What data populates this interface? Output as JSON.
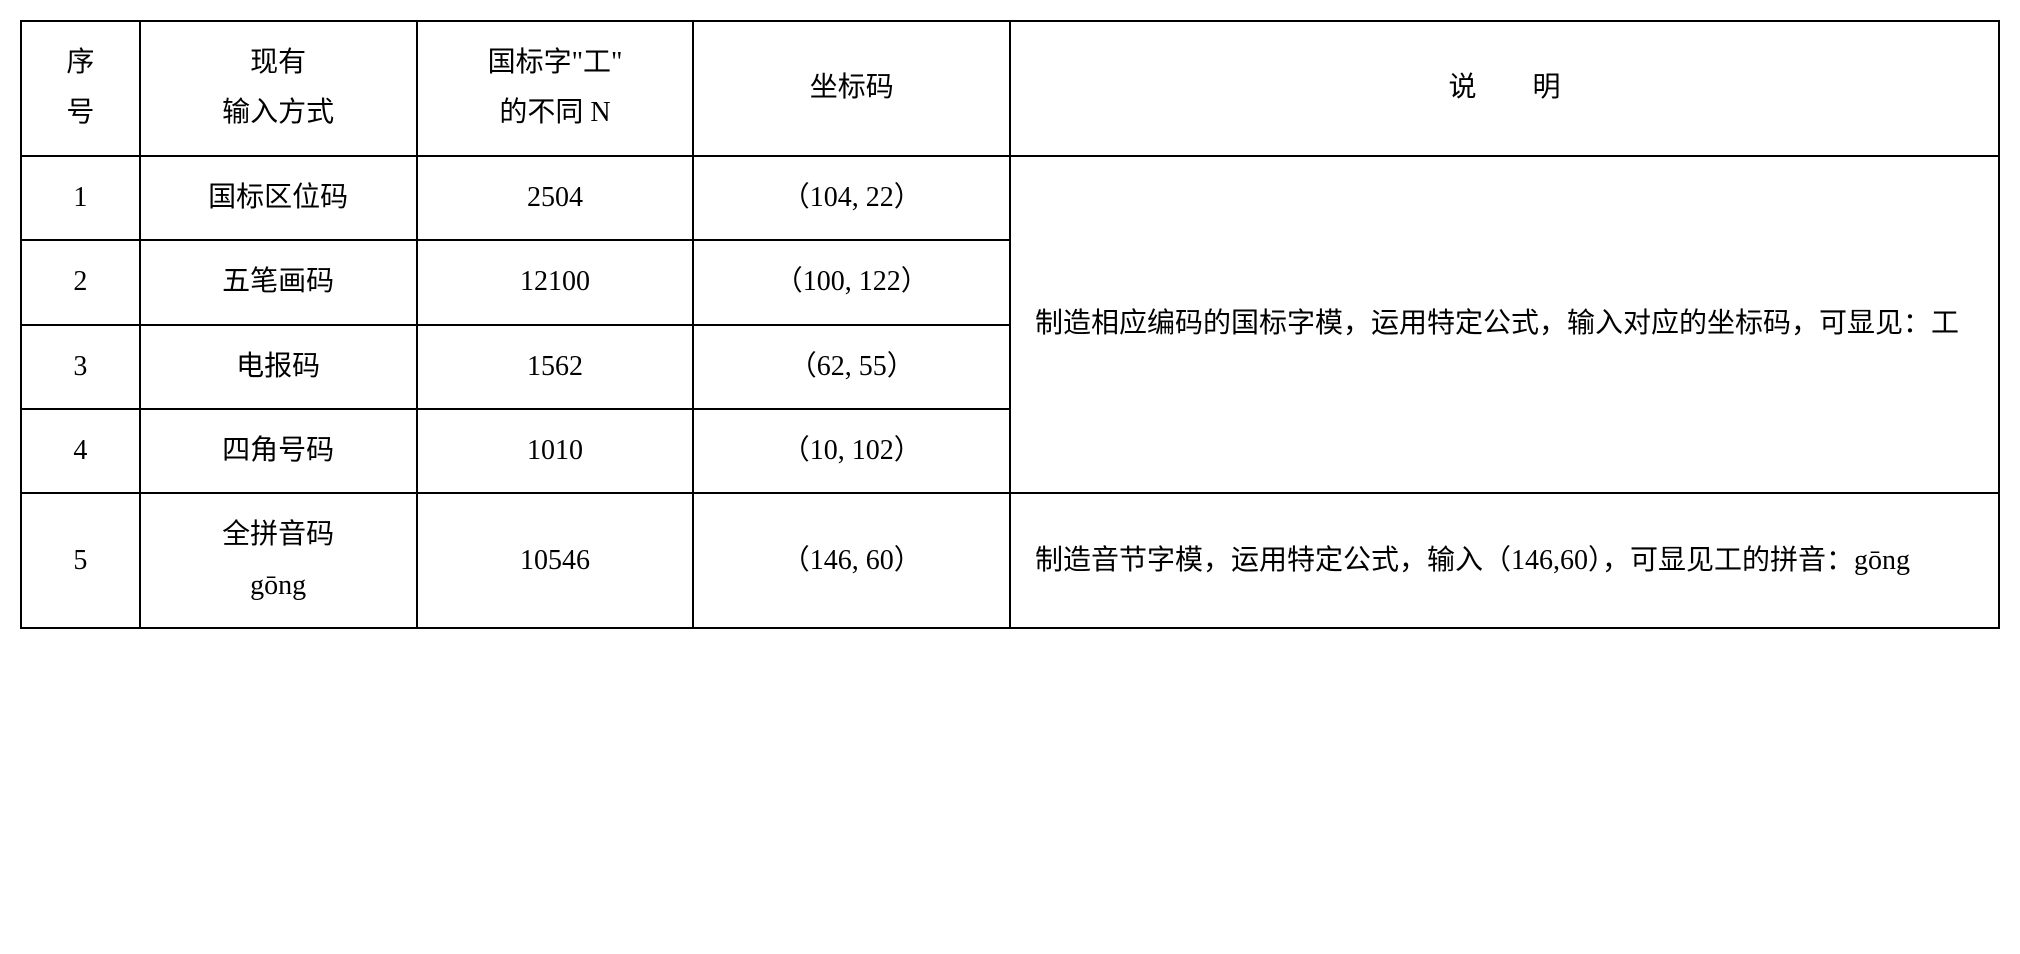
{
  "headers": {
    "seq_l1": "序",
    "seq_l2": "号",
    "method_l1": "现有",
    "method_l2": "输入方式",
    "n_l1": "国标字\"工\"",
    "n_l2": "的不同 N",
    "coord": "坐标码",
    "desc_pre": "说",
    "desc_post": "明"
  },
  "rows": [
    {
      "seq": "1",
      "method": "国标区位码",
      "n": "2504",
      "coord": "（104, 22）"
    },
    {
      "seq": "2",
      "method": "五笔画码",
      "n": "12100",
      "coord": "（100, 122）"
    },
    {
      "seq": "3",
      "method": "电报码",
      "n": "1562",
      "coord": "（62, 55）"
    },
    {
      "seq": "4",
      "method": "四角号码",
      "n": "1010",
      "coord": "（10, 102）"
    },
    {
      "seq": "5",
      "method_l1": "全拼音码",
      "method_l2": "gōng",
      "n": "10546",
      "coord": "（146, 60）"
    }
  ],
  "desc_merged": "制造相应编码的国标字模，运用特定公式，输入对应的坐标码，可显见：工",
  "desc_row5": "制造音节字模，运用特定公式，输入（146,60），可显见工的拼音：gōng",
  "styling": {
    "border_color": "#000000",
    "border_width": 2,
    "background_color": "#ffffff",
    "text_color": "#000000",
    "font_size": 28,
    "line_height": 1.8,
    "font_family": "SimSun"
  }
}
